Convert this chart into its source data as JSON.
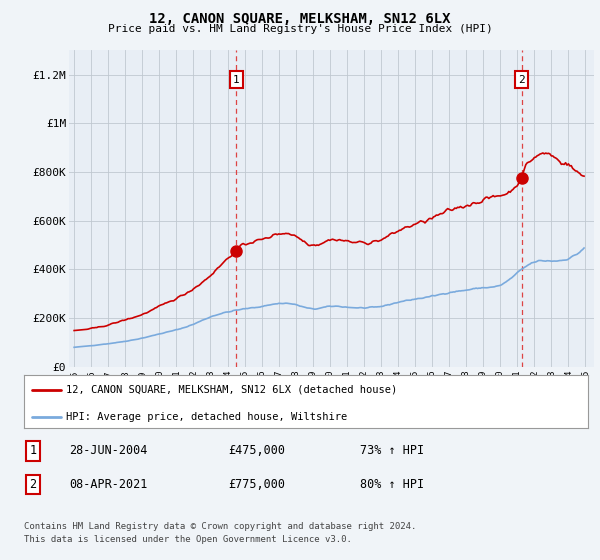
{
  "title": "12, CANON SQUARE, MELKSHAM, SN12 6LX",
  "subtitle": "Price paid vs. HM Land Registry's House Price Index (HPI)",
  "ylim": [
    0,
    1300000
  ],
  "yticks": [
    0,
    200000,
    400000,
    600000,
    800000,
    1000000,
    1200000
  ],
  "ytick_labels": [
    "£0",
    "£200K",
    "£400K",
    "£600K",
    "£800K",
    "£1M",
    "£1.2M"
  ],
  "background_color": "#f0f4f8",
  "plot_bg_color": "#e8eef5",
  "grid_color": "#c0c8d0",
  "red_color": "#cc0000",
  "blue_color": "#7aaadd",
  "dashed_color": "#dd4444",
  "marker1_x": 2004.5,
  "marker1_y": 475000,
  "marker2_x": 2021.25,
  "marker2_y": 775000,
  "legend_line1": "12, CANON SQUARE, MELKSHAM, SN12 6LX (detached house)",
  "legend_line2": "HPI: Average price, detached house, Wiltshire",
  "table_rows": [
    {
      "num": "1",
      "date": "28-JUN-2004",
      "price": "£475,000",
      "change": "73% ↑ HPI"
    },
    {
      "num": "2",
      "date": "08-APR-2021",
      "price": "£775,000",
      "change": "80% ↑ HPI"
    }
  ],
  "footnote1": "Contains HM Land Registry data © Crown copyright and database right 2024.",
  "footnote2": "This data is licensed under the Open Government Licence v3.0.",
  "xlim_left": 1994.7,
  "xlim_right": 2025.5
}
